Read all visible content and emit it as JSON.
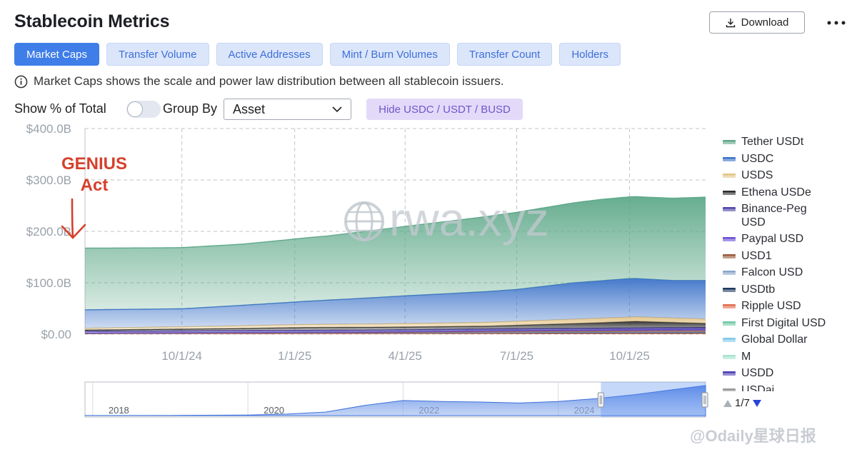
{
  "page": {
    "title": "Stablecoin Metrics",
    "download_label": "Download"
  },
  "tabs": [
    {
      "label": "Market Caps",
      "active": true
    },
    {
      "label": "Transfer Volume",
      "active": false
    },
    {
      "label": "Active Addresses",
      "active": false
    },
    {
      "label": "Mint / Burn Volumes",
      "active": false
    },
    {
      "label": "Transfer Count",
      "active": false
    },
    {
      "label": "Holders",
      "active": false
    }
  ],
  "info_text": "Market Caps shows the scale and power law distribution between all stablecoin issuers.",
  "controls": {
    "show_pct_label": "Show % of Total",
    "show_pct_on": false,
    "group_by_label": "Group By",
    "group_by_value": "Asset",
    "hide_button_label": "Hide USDC / USDT / BUSD"
  },
  "annotation": {
    "line1": "GENIUS",
    "line2": "Act"
  },
  "watermark": "rwa.xyz",
  "footer_watermark": "@Odaily星球日报",
  "chart_data": {
    "type": "area",
    "stacked": true,
    "y_ticks": [
      "$400.0B",
      "$300.0B",
      "$200.0B",
      "$100.0B",
      "$0.00"
    ],
    "ylim": [
      0,
      400
    ],
    "x_ticks": [
      {
        "label": "10/1/24",
        "t": 0
      },
      {
        "label": "1/1/25",
        "t": 92
      },
      {
        "label": "4/1/25",
        "t": 182
      },
      {
        "label": "7/1/25",
        "t": 273
      },
      {
        "label": "10/1/25",
        "t": 365
      }
    ],
    "t_range": [
      -79,
      427
    ],
    "grid": true,
    "legend_position": "right",
    "series": [
      {
        "name": "Ripple USD",
        "color": "#e36e4f",
        "points": [
          [
            -79,
            1.2
          ],
          [
            100,
            1.5
          ],
          [
            427,
            1.6
          ]
        ]
      },
      {
        "name": "USDtb",
        "color": "#1e3a5f",
        "points": [
          [
            -79,
            0.3
          ],
          [
            200,
            1
          ],
          [
            427,
            1.4
          ]
        ]
      },
      {
        "name": "Falcon USD",
        "color": "#8aa6c8",
        "points": [
          [
            -79,
            0.2
          ],
          [
            250,
            0.8
          ],
          [
            427,
            1.6
          ]
        ]
      },
      {
        "name": "USD1",
        "color": "#9b5d3c",
        "points": [
          [
            -79,
            0
          ],
          [
            160,
            0.6
          ],
          [
            250,
            2
          ],
          [
            427,
            2.6
          ]
        ]
      },
      {
        "name": "Paypal USD",
        "color": "#6b4fd6",
        "points": [
          [
            -79,
            0.5
          ],
          [
            200,
            0.9
          ],
          [
            427,
            2.2
          ]
        ]
      },
      {
        "name": "Binance-Peg USD",
        "color": "#4f43a8",
        "points": [
          [
            -79,
            3.2
          ],
          [
            100,
            3.4
          ],
          [
            427,
            3.6
          ]
        ]
      },
      {
        "name": "Ethena USDe",
        "color": "#2b2b2b",
        "points": [
          [
            -79,
            2.5
          ],
          [
            40,
            4
          ],
          [
            100,
            5.5
          ],
          [
            250,
            5.5
          ],
          [
            330,
            10
          ],
          [
            370,
            13
          ],
          [
            427,
            8
          ]
        ]
      },
      {
        "name": "USDS",
        "color": "#e3c487",
        "points": [
          [
            -79,
            3.5
          ],
          [
            100,
            6
          ],
          [
            220,
            7
          ],
          [
            330,
            8.5
          ],
          [
            427,
            8.5
          ]
        ]
      },
      {
        "name": "USDC",
        "color": "#3d73c9",
        "points": [
          [
            -79,
            36
          ],
          [
            0,
            35
          ],
          [
            92,
            44
          ],
          [
            182,
            54
          ],
          [
            273,
            62
          ],
          [
            320,
            71
          ],
          [
            365,
            75
          ],
          [
            400,
            73
          ],
          [
            427,
            75
          ]
        ]
      },
      {
        "name": "Tether USDt",
        "color": "#5fa98a",
        "points": [
          [
            -79,
            120
          ],
          [
            -20,
            119
          ],
          [
            50,
            119
          ],
          [
            120,
            125
          ],
          [
            182,
            135
          ],
          [
            273,
            150
          ],
          [
            340,
            158
          ],
          [
            365,
            159
          ],
          [
            400,
            160
          ],
          [
            427,
            162
          ]
        ]
      }
    ],
    "legend_items": [
      {
        "name": "Tether USDt",
        "color": "#5fa98a"
      },
      {
        "name": "USDC",
        "color": "#3d73c9"
      },
      {
        "name": "USDS",
        "color": "#e3c487"
      },
      {
        "name": "Ethena USDe",
        "color": "#2b2b2b"
      },
      {
        "name": "Binance-Peg USD",
        "color": "#4f43a8"
      },
      {
        "name": "Paypal USD",
        "color": "#6b4fd6"
      },
      {
        "name": "USD1",
        "color": "#9b5d3c"
      },
      {
        "name": "Falcon USD",
        "color": "#8aa6c8"
      },
      {
        "name": "USDtb",
        "color": "#1e3a5f"
      },
      {
        "name": "Ripple USD",
        "color": "#e36e4f"
      },
      {
        "name": "First Digital USD",
        "color": "#6ec9a4"
      },
      {
        "name": "Global Dollar",
        "color": "#7fc7e8"
      },
      {
        "name": "M",
        "color": "#a7e3d0"
      },
      {
        "name": "USDD",
        "color": "#4b3fb8"
      },
      {
        "name": "USDai",
        "color": "#999999"
      }
    ],
    "legend_page": "1/7",
    "overview": {
      "x_ticks": [
        {
          "label": "2018",
          "year": 2018
        },
        {
          "label": "2020",
          "year": 2020
        },
        {
          "label": "2022",
          "year": 2022
        },
        {
          "label": "2024",
          "year": 2024
        }
      ],
      "year_range": [
        2017.9,
        2025.9
      ],
      "selected_range": [
        2024.55,
        2025.9
      ],
      "total": [
        [
          2017.9,
          0.5
        ],
        [
          2019,
          2
        ],
        [
          2020,
          5
        ],
        [
          2020.5,
          15
        ],
        [
          2021,
          35
        ],
        [
          2021.5,
          100
        ],
        [
          2022,
          150
        ],
        [
          2022.5,
          140
        ],
        [
          2023,
          135
        ],
        [
          2023.5,
          125
        ],
        [
          2024,
          140
        ],
        [
          2024.5,
          170
        ],
        [
          2025,
          210
        ],
        [
          2025.5,
          260
        ],
        [
          2025.9,
          300
        ]
      ]
    }
  }
}
